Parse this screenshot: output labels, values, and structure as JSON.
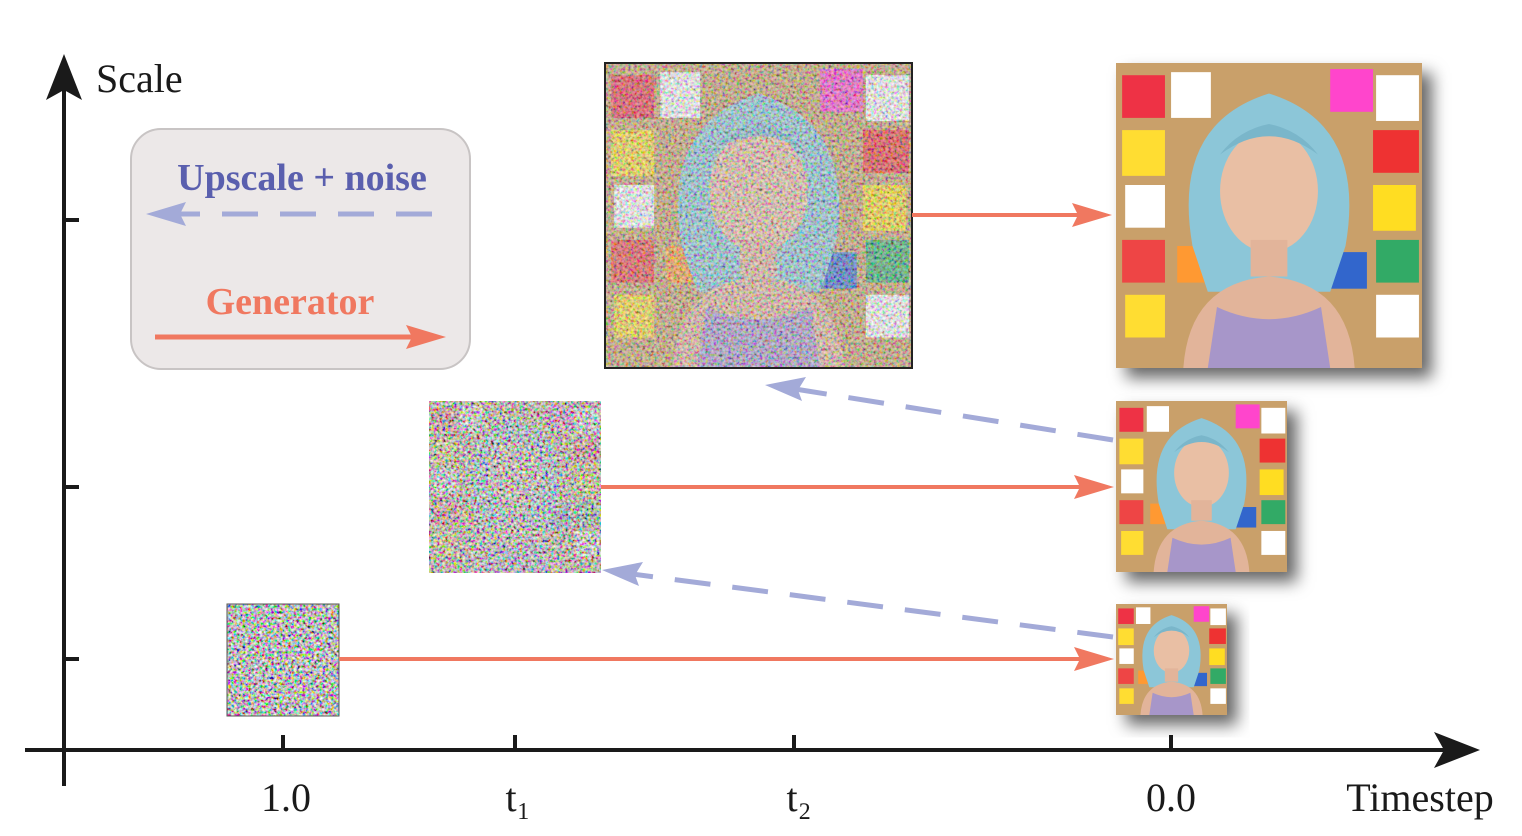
{
  "axes": {
    "y_label": "Scale",
    "x_label": "Timestep",
    "x_ticks": [
      "1.0",
      "t₁",
      "t₂",
      "0.0"
    ]
  },
  "legend": {
    "upscale": "Upscale + noise",
    "generator": "Generator"
  }
}
